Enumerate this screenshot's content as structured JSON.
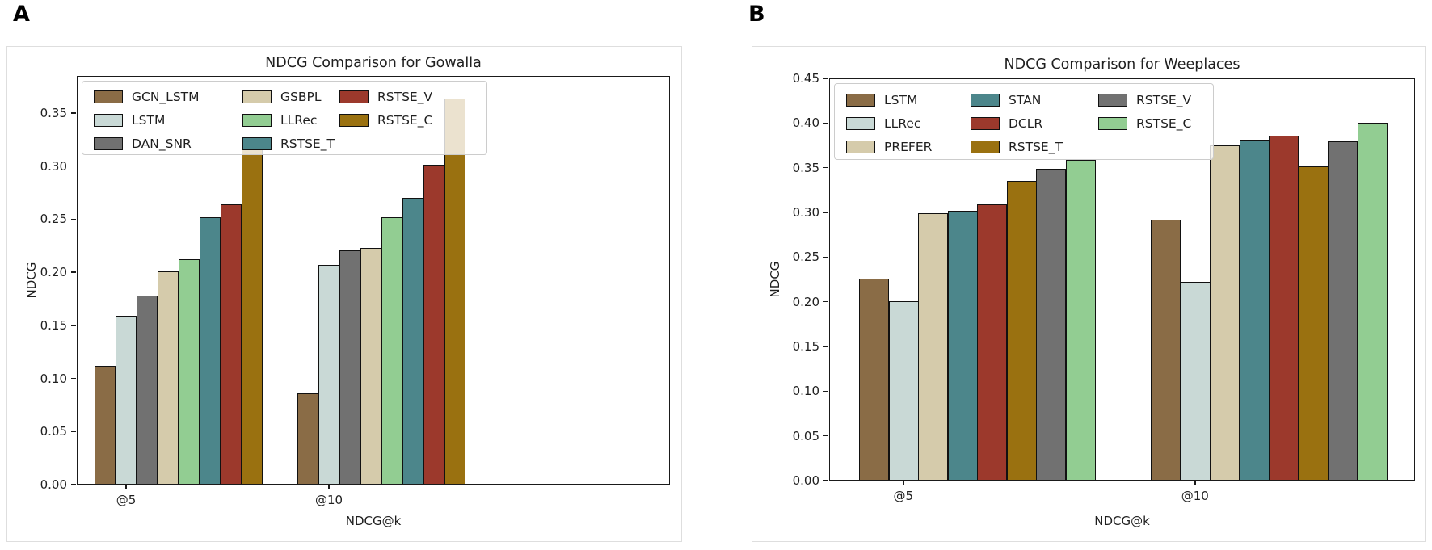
{
  "page": {
    "background": "#ffffff"
  },
  "palette": {
    "brown": "#8a6c46",
    "light_blue_gray": "#c9d9d6",
    "gray": "#717171",
    "tan": "#d5cbab",
    "light_green": "#92cd92",
    "teal": "#4c868b",
    "dark_red": "#9c392c",
    "dark_gold": "#9a7110",
    "bar_edge": "#111111",
    "spine": "#1a1a1a"
  },
  "chart_data": [
    {
      "type": "bar",
      "panel_label": "A",
      "title": "NDCG Comparison for Gowalla",
      "xlabel": "NDCG@k",
      "ylabel": "NDCG",
      "categories": [
        "@5",
        "@10"
      ],
      "ylim": [
        0,
        0.385
      ],
      "ytick_step": 0.05,
      "ytick_max": 0.35,
      "grid": false,
      "legend_position": "upper left",
      "series": [
        {
          "name": "GCN_LSTM",
          "color": "#8a6c46",
          "values": [
            0.112,
            0.086
          ]
        },
        {
          "name": "LSTM",
          "color": "#c9d9d6",
          "values": [
            0.159,
            0.207
          ]
        },
        {
          "name": "DAN_SNR",
          "color": "#717171",
          "values": [
            0.178,
            0.221
          ]
        },
        {
          "name": "GSBPL",
          "color": "#d5cbab",
          "values": [
            0.201,
            0.223
          ]
        },
        {
          "name": "LLRec",
          "color": "#92cd92",
          "values": [
            0.212,
            0.252
          ]
        },
        {
          "name": "RSTSE_T",
          "color": "#4c868b",
          "values": [
            0.252,
            0.27
          ]
        },
        {
          "name": "RSTSE_V",
          "color": "#9c392c",
          "values": [
            0.264,
            0.301
          ]
        },
        {
          "name": "RSTSE_C",
          "color": "#9a7110",
          "values": [
            0.32,
            0.364
          ]
        }
      ]
    },
    {
      "type": "bar",
      "panel_label": "B",
      "title": "NDCG Comparison for Weeplaces",
      "xlabel": "NDCG@k",
      "ylabel": "NDCG",
      "categories": [
        "@5",
        "@10"
      ],
      "ylim": [
        0,
        0.45
      ],
      "ytick_step": 0.05,
      "ytick_max": 0.45,
      "grid": false,
      "legend_position": "upper left",
      "series": [
        {
          "name": "LSTM",
          "color": "#8a6c46",
          "values": [
            0.226,
            0.292
          ]
        },
        {
          "name": "LLRec",
          "color": "#c9d9d6",
          "values": [
            0.201,
            0.222
          ]
        },
        {
          "name": "PREFER",
          "color": "#d5cbab",
          "values": [
            0.299,
            0.375
          ]
        },
        {
          "name": "STAN",
          "color": "#4c868b",
          "values": [
            0.302,
            0.381
          ]
        },
        {
          "name": "DCLR",
          "color": "#9c392c",
          "values": [
            0.309,
            0.386
          ]
        },
        {
          "name": "RSTSE_T",
          "color": "#9a7110",
          "values": [
            0.335,
            0.352
          ]
        },
        {
          "name": "RSTSE_V",
          "color": "#717171",
          "values": [
            0.349,
            0.38
          ]
        },
        {
          "name": "RSTSE_C",
          "color": "#92cd92",
          "values": [
            0.359,
            0.4
          ]
        }
      ]
    }
  ]
}
